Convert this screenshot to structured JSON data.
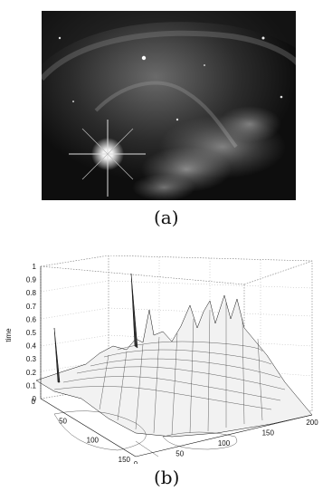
{
  "figure": {
    "panel_a_caption": "(a)",
    "panel_b_caption": "(b)"
  },
  "chart_data": {
    "type": "surface",
    "zlabel": "time",
    "z_ticks": [
      "0",
      "0.1",
      "0.2",
      "0.3",
      "0.4",
      "0.5",
      "0.6",
      "0.7",
      "0.8",
      "0.9",
      "1"
    ],
    "zlim": [
      0,
      1
    ],
    "x_ticks": [
      "0",
      "50",
      "100",
      "150",
      "200"
    ],
    "xlim": [
      0,
      200
    ],
    "y_ticks": [
      "0",
      "50",
      "100",
      "150"
    ],
    "ylim": [
      0,
      150
    ],
    "grid": true
  }
}
